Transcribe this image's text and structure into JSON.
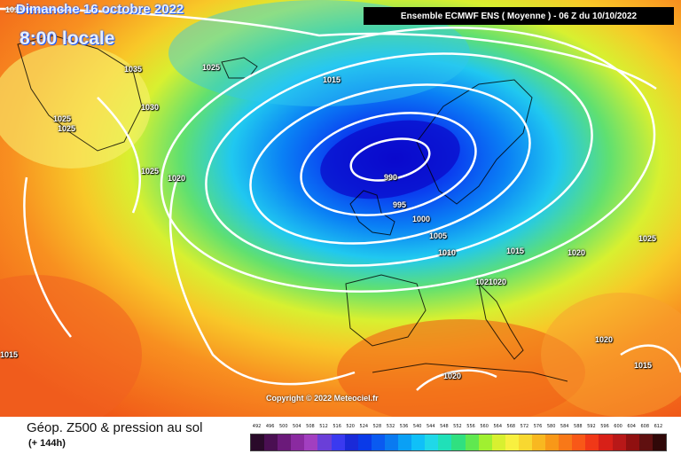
{
  "header": {
    "date_line": "Dimanche 16 octobre 2022",
    "time_line": "8:00 locale",
    "model_title": "Ensemble ECMWF ENS  ( Moyenne )  -  06 Z du 10/10/2022",
    "top_corner_label": "1015"
  },
  "isobar_labels": [
    {
      "text": "1035"
    },
    {
      "text": "1025"
    },
    {
      "text": "1030"
    },
    {
      "text": "1025"
    },
    {
      "text": "1025"
    },
    {
      "text": "1025"
    },
    {
      "text": "1020"
    },
    {
      "text": "1015"
    },
    {
      "text": "990"
    },
    {
      "text": "995"
    },
    {
      "text": "1000"
    },
    {
      "text": "1005"
    },
    {
      "text": "1010"
    },
    {
      "text": "1015"
    },
    {
      "text": "1020"
    },
    {
      "text": "1025"
    },
    {
      "text": "1021020"
    },
    {
      "text": "1020"
    },
    {
      "text": "1015"
    },
    {
      "text": "1015"
    },
    {
      "text": "1020"
    }
  ],
  "copyright": "Copyright © 2022 Meteociel.fr",
  "caption": {
    "title": "Géop. Z500 & pression au sol",
    "subtitle": "(+ 144h)"
  },
  "legend": {
    "values": [
      "492",
      "496",
      "500",
      "504",
      "508",
      "512",
      "516",
      "520",
      "524",
      "528",
      "532",
      "536",
      "540",
      "544",
      "548",
      "552",
      "556",
      "560",
      "564",
      "568",
      "572",
      "576",
      "580",
      "584",
      "588",
      "592",
      "596",
      "600",
      "604",
      "608",
      "612"
    ],
    "colors": [
      "#2a0a2a",
      "#4a0f52",
      "#6b1a7a",
      "#8a2aa0",
      "#a23fc0",
      "#6a3fd8",
      "#3a3af0",
      "#1a2ad8",
      "#0a3ae8",
      "#0a5af0",
      "#0a7af0",
      "#0aa0f5",
      "#10c0f8",
      "#20d8e8",
      "#20e0b8",
      "#30e080",
      "#60e850",
      "#a0f030",
      "#d8f030",
      "#f8f040",
      "#f8d830",
      "#f8b820",
      "#f89818",
      "#f87818",
      "#f85818",
      "#f03818",
      "#d82018",
      "#b81818",
      "#901010",
      "#601010",
      "#300808"
    ]
  }
}
